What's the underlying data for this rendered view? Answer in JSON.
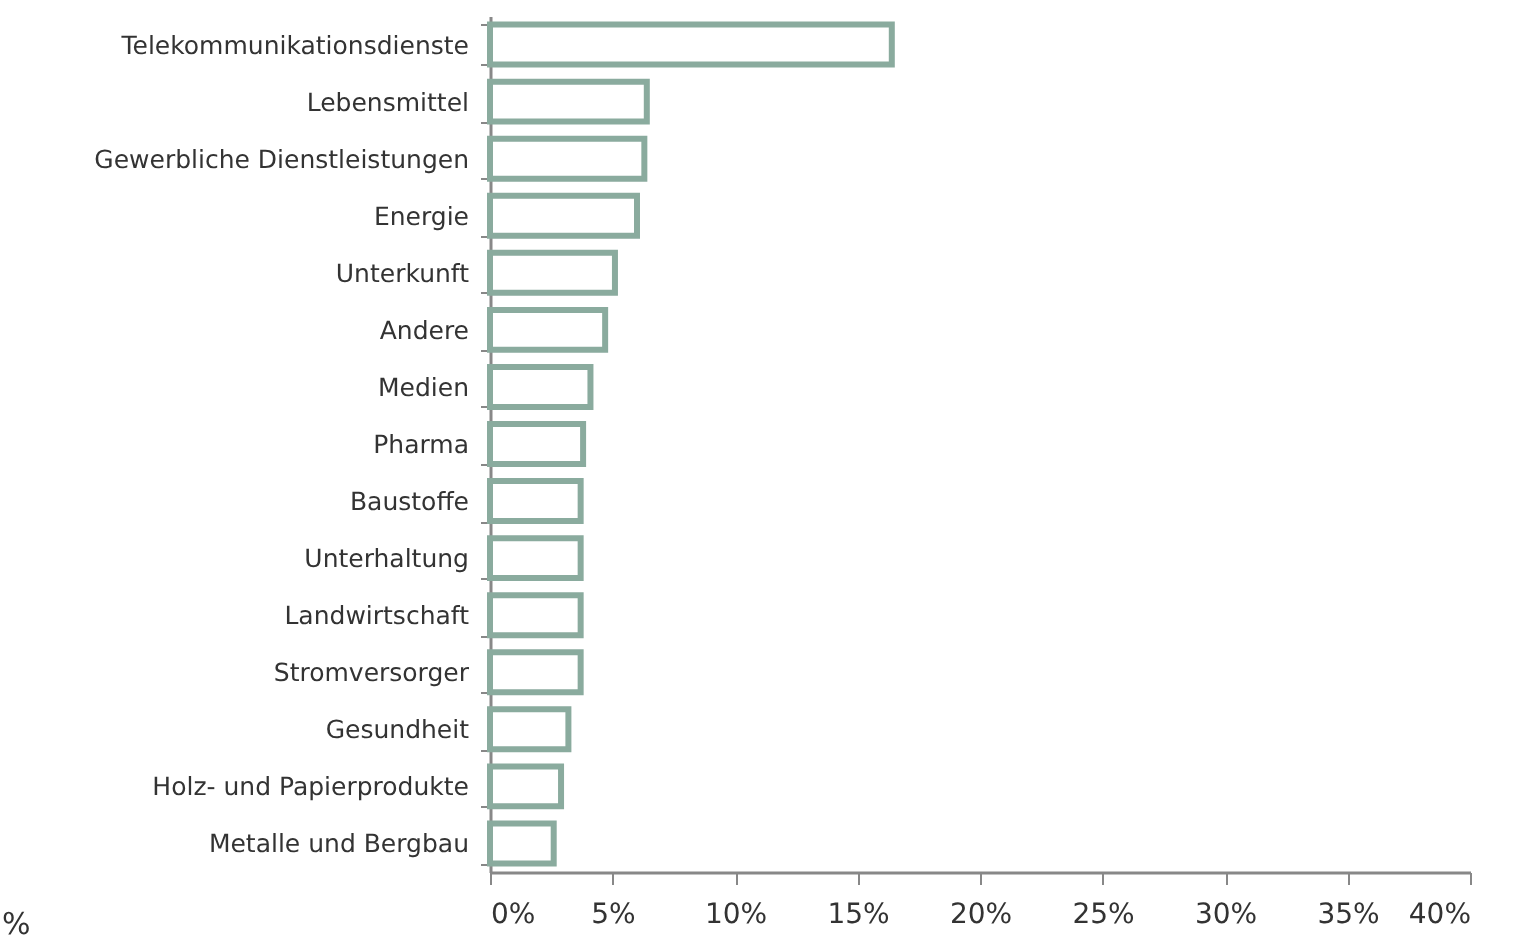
{
  "chart_data": {
    "type": "bar",
    "orientation": "horizontal",
    "categories": [
      "Telekommunikationsdienste",
      "Lebensmittel",
      "Gewerbliche Dienstleistungen",
      "Energie",
      "Unterkunft",
      "Andere",
      "Medien",
      "Pharma",
      "Baustoffe",
      "Unterhaltung",
      "Landwirtschaft",
      "Stromversorger",
      "Gesundheit",
      "Holz- und Papierprodukte",
      "Metalle und Bergbau"
    ],
    "values": [
      16.4,
      6.4,
      6.3,
      6.0,
      5.1,
      4.7,
      4.1,
      3.8,
      3.7,
      3.7,
      3.7,
      3.7,
      3.2,
      2.9,
      2.6
    ],
    "color": "#8aab9e",
    "xlim": [
      0,
      40
    ],
    "xticks": [
      {
        "value": 0,
        "label": "0%"
      },
      {
        "value": 5,
        "label": "5%"
      },
      {
        "value": 10,
        "label": "10%"
      },
      {
        "value": 15,
        "label": "15%"
      },
      {
        "value": 20,
        "label": "20%"
      },
      {
        "value": 25,
        "label": "25%"
      },
      {
        "value": 30,
        "label": "30%"
      },
      {
        "value": 35,
        "label": "35%"
      },
      {
        "value": 40,
        "label": "40%"
      }
    ],
    "annotations": [
      "%"
    ],
    "grid": false
  }
}
